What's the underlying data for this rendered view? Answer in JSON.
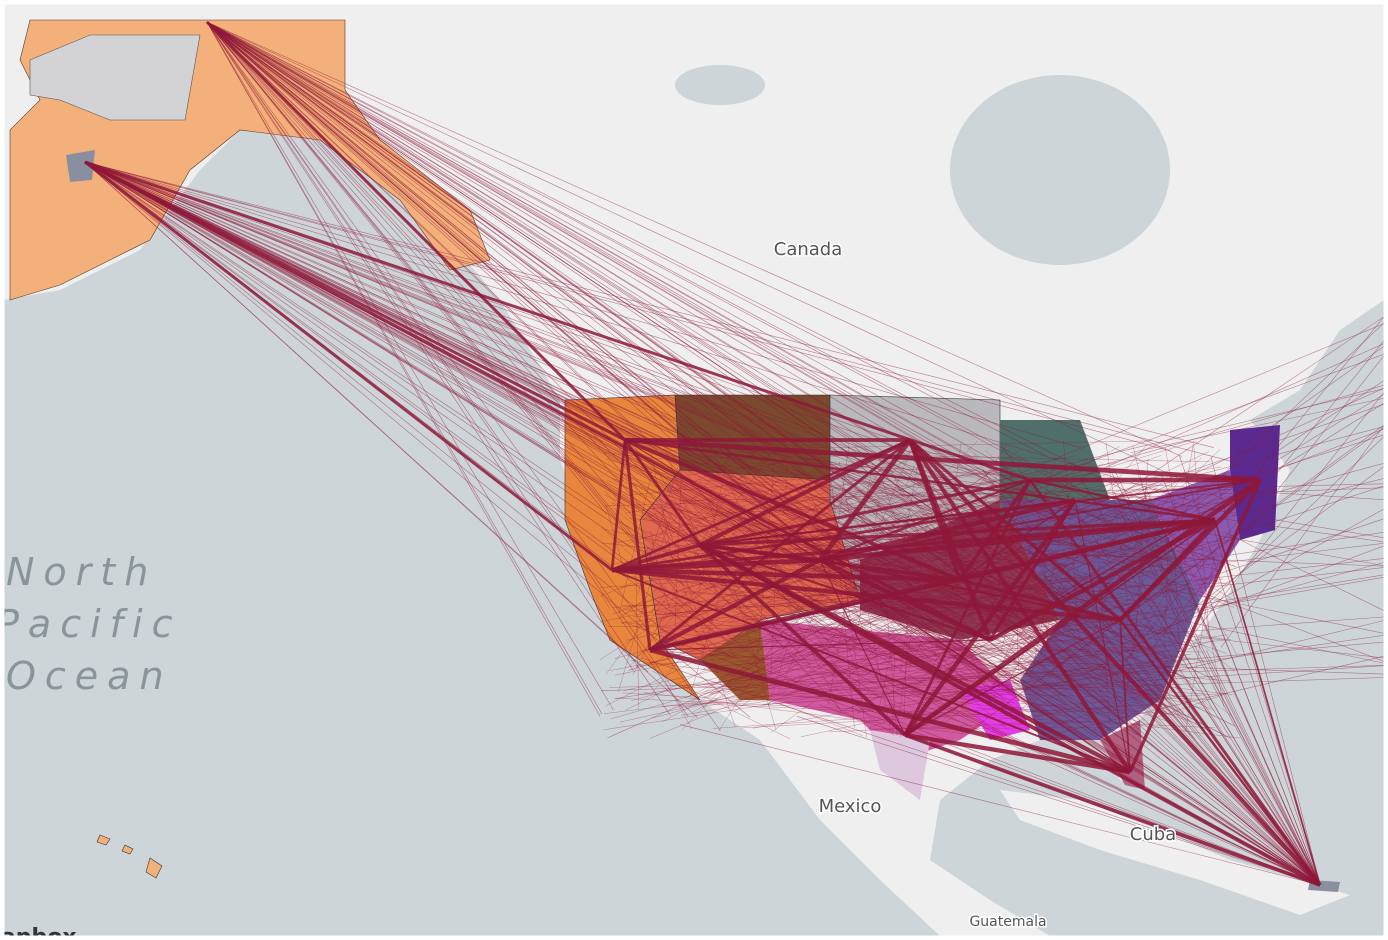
{
  "labels": {
    "canada": "Canada",
    "ocean": [
      "North",
      "Pacific",
      "Ocean"
    ],
    "mexico": "Mexico",
    "cuba": "Cuba",
    "guatemala": "Guatemala"
  },
  "attribution": "mapbox"
}
